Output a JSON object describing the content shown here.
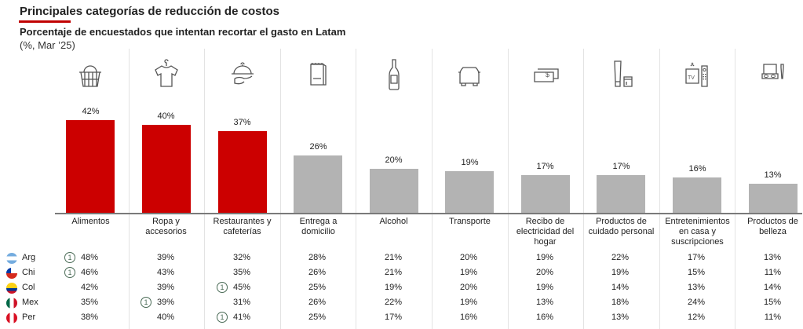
{
  "header": {
    "title": "Principales categorías de reducción de costos",
    "subtitle": "Porcentaje de encuestados que intentan recortar el gasto en Latam",
    "unit": "(%, Mar ’25)"
  },
  "colors": {
    "highlight": "#CC0000",
    "default": "#B3B3B3",
    "accent_underline": "#C00000",
    "badge": "#4A6B56"
  },
  "chart_data": {
    "type": "bar",
    "title": "Principales categorías de reducción de costos",
    "subtitle": "Porcentaje de encuestados que intentan recortar el gasto en Latam",
    "xlabel": "",
    "ylabel": "%",
    "ylim": [
      0,
      45
    ],
    "grid": false,
    "categories": [
      "Alimentos",
      "Ropa y accesorios",
      "Restaurantes y cafeterías",
      "Entrega a domicilio",
      "Alcohol",
      "Transporte",
      "Recibo de electricidad del hogar",
      "Productos de cuidado personal",
      "Entretenimientos en casa y suscripciones",
      "Productos de belleza"
    ],
    "category_lines": [
      [
        "Alimentos"
      ],
      [
        "Ropa y",
        "accesorios"
      ],
      [
        "Restaurantes y",
        "cafeterías"
      ],
      [
        "Entrega a",
        "domicilio"
      ],
      [
        "Alcohol"
      ],
      [
        "Transporte"
      ],
      [
        "Recibo de",
        "electricidad del",
        "hogar"
      ],
      [
        "Productos de",
        "cuidado personal"
      ],
      [
        "Entretenimientos",
        "en casa y",
        "suscripciones"
      ],
      [
        "Productos de",
        "belleza"
      ]
    ],
    "icons": [
      "basket-icon",
      "tshirt-icon",
      "cloche-icon",
      "paper-bag-icon",
      "bottle-icon",
      "car-icon",
      "banknotes-icon",
      "cosmetics-tube-icon",
      "tv-remote-icon",
      "makeup-palette-icon"
    ],
    "values": [
      42,
      40,
      37,
      26,
      20,
      19,
      17,
      17,
      16,
      13
    ],
    "value_labels": [
      "42%",
      "40%",
      "37%",
      "26%",
      "20%",
      "19%",
      "17%",
      "17%",
      "16%",
      "13%"
    ],
    "highlighted": [
      true,
      true,
      true,
      false,
      false,
      false,
      false,
      false,
      false,
      false
    ]
  },
  "table": {
    "rows": [
      {
        "country": "Arg",
        "flag": "argentina-flag-icon",
        "values": [
          "48%",
          "39%",
          "32%",
          "28%",
          "21%",
          "20%",
          "19%",
          "22%",
          "17%",
          "13%"
        ],
        "badges": [
          true,
          false,
          false,
          false,
          false,
          false,
          false,
          false,
          false,
          false
        ]
      },
      {
        "country": "Chi",
        "flag": "chile-flag-icon",
        "values": [
          "46%",
          "43%",
          "35%",
          "26%",
          "21%",
          "19%",
          "20%",
          "19%",
          "15%",
          "11%"
        ],
        "badges": [
          true,
          false,
          false,
          false,
          false,
          false,
          false,
          false,
          false,
          false
        ]
      },
      {
        "country": "Col",
        "flag": "colombia-flag-icon",
        "values": [
          "42%",
          "39%",
          "45%",
          "25%",
          "19%",
          "20%",
          "19%",
          "14%",
          "13%",
          "14%"
        ],
        "badges": [
          false,
          false,
          true,
          false,
          false,
          false,
          false,
          false,
          false,
          false
        ]
      },
      {
        "country": "Mex",
        "flag": "mexico-flag-icon",
        "values": [
          "35%",
          "39%",
          "31%",
          "26%",
          "22%",
          "19%",
          "13%",
          "18%",
          "24%",
          "15%"
        ],
        "badges": [
          false,
          true,
          false,
          false,
          false,
          false,
          false,
          false,
          false,
          false
        ]
      },
      {
        "country": "Per",
        "flag": "peru-flag-icon",
        "values": [
          "38%",
          "40%",
          "41%",
          "25%",
          "17%",
          "16%",
          "16%",
          "13%",
          "12%",
          "11%"
        ],
        "badges": [
          false,
          false,
          true,
          false,
          false,
          false,
          false,
          false,
          false,
          false
        ]
      }
    ],
    "badge_label": "1"
  }
}
